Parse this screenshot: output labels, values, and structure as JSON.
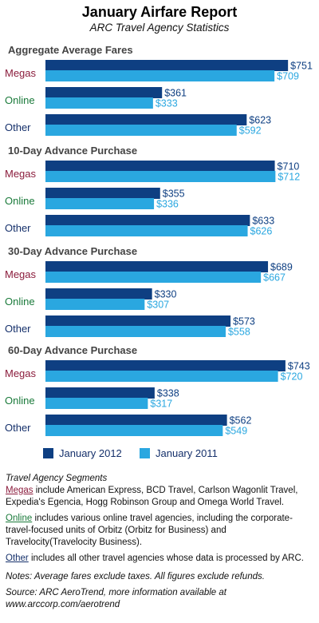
{
  "header": {
    "title": "January Airfare Report",
    "subtitle": "ARC Travel Agency Statistics"
  },
  "colors": {
    "jan2012": "#0e3f82",
    "jan2011": "#2aa7e0",
    "megas": "#8b1c3c",
    "online": "#1a7a3a",
    "other": "#15306b",
    "section_title": "#444444"
  },
  "chart_data": {
    "type": "bar",
    "orientation": "horizontal",
    "categories": [
      "Megas",
      "Online",
      "Other"
    ],
    "groups": [
      {
        "title": "Aggregate Average Fares",
        "series": [
          {
            "name": "January 2012",
            "values": [
              751,
              361,
              623
            ],
            "labels": [
              "$751",
              "$361",
              "$623"
            ]
          },
          {
            "name": "January 2011",
            "values": [
              709,
              333,
              592
            ],
            "labels": [
              "$709",
              "$333",
              "$592"
            ]
          }
        ]
      },
      {
        "title": "10-Day Advance Purchase",
        "series": [
          {
            "name": "January 2012",
            "values": [
              710,
              355,
              633
            ],
            "labels": [
              "$710",
              "$355",
              "$633"
            ]
          },
          {
            "name": "January 2011",
            "values": [
              712,
              336,
              626
            ],
            "labels": [
              "$712",
              "$336",
              "$626"
            ]
          }
        ]
      },
      {
        "title": "30-Day Advance Purchase",
        "series": [
          {
            "name": "January 2012",
            "values": [
              689,
              330,
              573
            ],
            "labels": [
              "$689",
              "$330",
              "$573"
            ]
          },
          {
            "name": "January 2011",
            "values": [
              667,
              307,
              558
            ],
            "labels": [
              "$667",
              "$307",
              "$558"
            ]
          }
        ]
      },
      {
        "title": "60-Day Advance Purchase",
        "series": [
          {
            "name": "January 2012",
            "values": [
              743,
              338,
              562
            ],
            "labels": [
              "$743",
              "$338",
              "$562"
            ]
          },
          {
            "name": "January 2011",
            "values": [
              720,
              317,
              549
            ],
            "labels": [
              "$720",
              "$317",
              "$549"
            ]
          }
        ]
      }
    ],
    "legend": [
      "January 2012",
      "January 2011"
    ]
  },
  "notes": {
    "segments_heading": "Travel Agency Segments",
    "megas_name": "Megas",
    "megas_text": " include American Express, BCD Travel, Carlson Wagonlit Travel, Expedia's Egencia, Hogg Robinson Group and Omega World Travel.",
    "online_name": "Online",
    "online_text": " includes various online travel agencies, including the corporate-travel-focused units of Orbitz (Orbitz for Business) and Travelocity(Travelocity Business).",
    "other_name": "Other",
    "other_text": " includes all other travel agencies whose data is processed by ARC.",
    "disclaimer": "Notes: Average fares exclude taxes. All figures exclude refunds.",
    "source_line1": "Source: ARC AeroTrend, more information available at",
    "source_line2": "www.arccorp.com/aerotrend"
  }
}
